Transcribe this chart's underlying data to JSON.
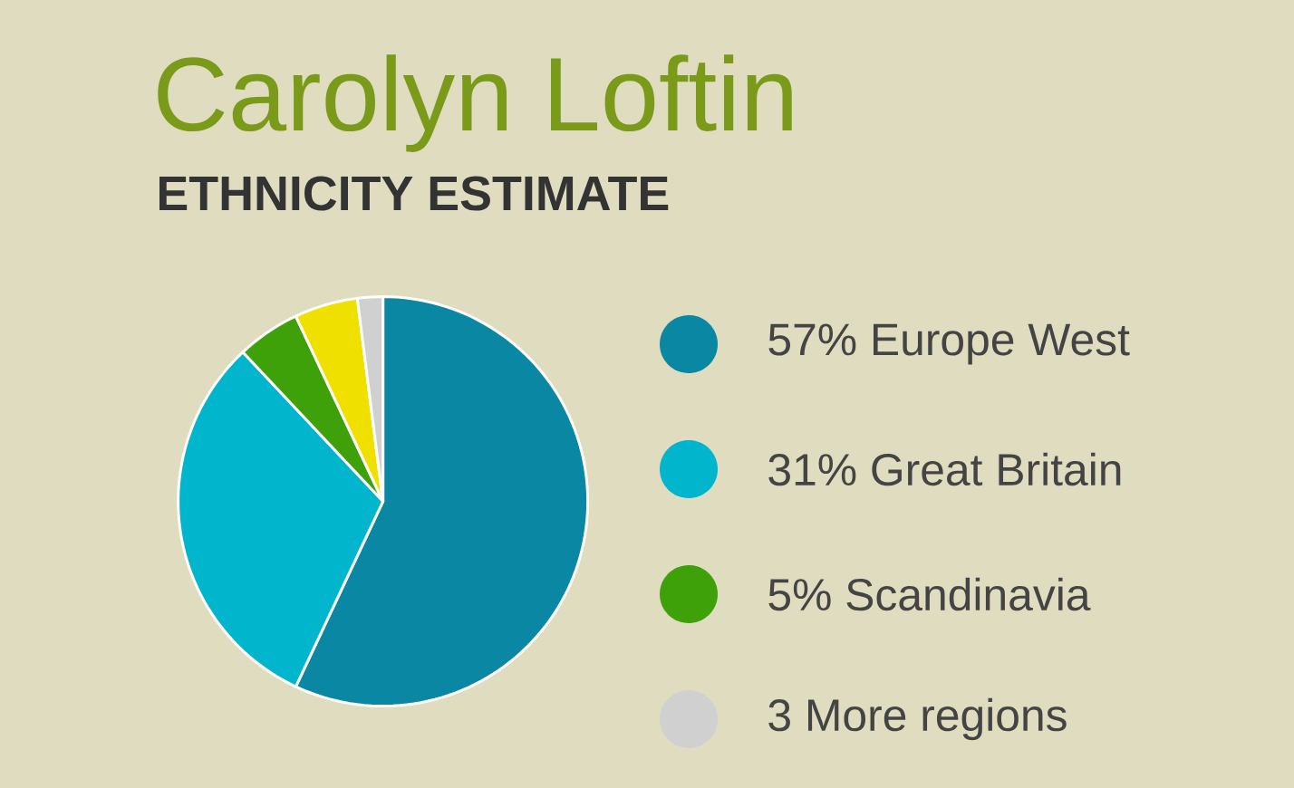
{
  "chart_data": {
    "type": "pie",
    "title": "Carolyn Loftin",
    "subtitle": "ETHNICITY ESTIMATE",
    "categories": [
      "57% Europe West",
      "31% Great Britain",
      "5% Scandinavia",
      null,
      "3 More regions"
    ],
    "values": [
      57,
      31,
      5,
      5,
      2
    ],
    "colors": [
      "#0a87a3",
      "#00b5cc",
      "#3fa10a",
      "#f0e000",
      "#d0d0d0"
    ],
    "legend": "right"
  }
}
